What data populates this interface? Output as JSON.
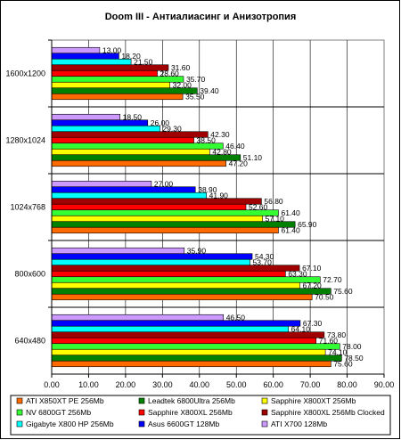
{
  "chart_data": {
    "type": "bar",
    "orientation": "horizontal",
    "title": "Doom III - Антиалиасинг и Анизотропия",
    "xlabel": "",
    "ylabel": "",
    "xlim": [
      0,
      90
    ],
    "xticks": [
      "0.00",
      "10.00",
      "20.00",
      "30.00",
      "40.00",
      "50.00",
      "60.00",
      "70.00",
      "80.00",
      "90.00"
    ],
    "grid": true,
    "legend_position": "bottom",
    "categories": [
      "1600x1200",
      "1280x1024",
      "1024x768",
      "800x600",
      "640x480"
    ],
    "series": [
      {
        "name": "ATI X850XT PE 256Mb",
        "color": "#ff6a00",
        "values": [
          35.5,
          47.2,
          61.4,
          70.5,
          75.6
        ]
      },
      {
        "name": "Leadtek 6800Ultra 256Mb",
        "color": "#008000",
        "values": [
          39.4,
          51.1,
          65.9,
          75.6,
          78.5
        ]
      },
      {
        "name": "Sapphire X800XT 256Mb",
        "color": "#ffff00",
        "values": [
          32.0,
          42.8,
          57.1,
          67.2,
          74.1
        ]
      },
      {
        "name": "NV 6800GT 256Mb",
        "color": "#33ff33",
        "values": [
          35.7,
          46.4,
          61.4,
          72.7,
          78.0
        ]
      },
      {
        "name": "Sapphire X800XL 256Mb",
        "color": "#ff0000",
        "values": [
          28.6,
          38.5,
          52.6,
          63.3,
          71.6
        ]
      },
      {
        "name": "Sapphire X800XL 256Mb Clocked",
        "color": "#a00000",
        "values": [
          31.6,
          42.3,
          56.8,
          67.1,
          73.8
        ]
      },
      {
        "name": "Gigabyte X800 HP 256Mb",
        "color": "#00ffff",
        "values": [
          21.5,
          29.3,
          41.9,
          53.7,
          64.1
        ]
      },
      {
        "name": "Asus 6600GT 128Mb",
        "color": "#0000ff",
        "values": [
          18.2,
          26.0,
          38.9,
          54.3,
          67.3
        ]
      },
      {
        "name": "ATI X700 128Mb",
        "color": "#cc99ff",
        "values": [
          13.0,
          18.5,
          27.0,
          35.9,
          46.5
        ]
      }
    ],
    "value_labels": [
      [
        "35.50",
        "47.20",
        "61.40",
        "70.50",
        "75.60"
      ],
      [
        "39.40",
        "51.10",
        "65.90",
        "75.60",
        "78.50"
      ],
      [
        "32.00",
        "42.80",
        "57.10",
        "67.20",
        "74.10"
      ],
      [
        "35.70",
        "46.40",
        "61.40",
        "72.70",
        "78.00"
      ],
      [
        "28.60",
        "38.50",
        "52.60",
        "63.30",
        "71.60"
      ],
      [
        "31.60",
        "42.30",
        "56.80",
        "67.10",
        "73.80"
      ],
      [
        "21.50",
        "29.30",
        "41.90",
        "53.70",
        "64.10"
      ],
      [
        "18.20",
        "26.00",
        "38.90",
        "54.30",
        "67.30"
      ],
      [
        "13.00",
        "18.50",
        "27.00",
        "35.90",
        "46.50"
      ]
    ]
  }
}
